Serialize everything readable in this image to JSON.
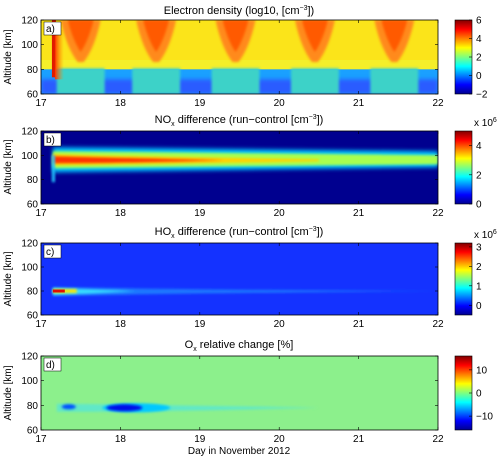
{
  "chart_data": [
    {
      "type": "heatmap",
      "panel_label": "a)",
      "title_main": "Electron density (log10, [cm",
      "title_sup": "−3",
      "title_end": "])",
      "ylabel": "Altitude [km]",
      "xlim": [
        17,
        22
      ],
      "ylim": [
        60,
        120
      ],
      "xticks": [
        "17",
        "18",
        "19",
        "20",
        "21",
        "22"
      ],
      "yticks": [
        "60",
        "80",
        "100",
        "120"
      ],
      "colorbar": {
        "range": [
          -2,
          6
        ],
        "ticks": [
          "−2",
          "0",
          "2",
          "4",
          "6"
        ],
        "exponent": ""
      },
      "features": {
        "day_peak_days": [
          17.5,
          18.45,
          19.45,
          20.45,
          21.45
        ],
        "night_layer_top_km": 80,
        "upper_background": "yellow",
        "spe_onset_day": 17.15
      }
    },
    {
      "type": "heatmap",
      "panel_label": "b)",
      "title_main": "NO",
      "title_sub": "x",
      "title_end": " difference (run−control [cm",
      "title_sup": "−3",
      "title_end2": "])",
      "ylabel": "Altitude [km]",
      "xlim": [
        17,
        22
      ],
      "ylim": [
        60,
        120
      ],
      "xticks": [
        "17",
        "18",
        "19",
        "20",
        "21",
        "22"
      ],
      "yticks": [
        "60",
        "80",
        "100",
        "120"
      ],
      "colorbar": {
        "range": [
          0,
          5
        ],
        "ticks": [
          "0",
          "2",
          "4"
        ],
        "exponent_base": "x 10",
        "exponent_power": "6"
      },
      "features": {
        "band_center_km": 96,
        "band_start_day": 17.15,
        "peak_value": 4500000.0
      }
    },
    {
      "type": "heatmap",
      "panel_label": "c)",
      "title_main": "HO",
      "title_sub": "x",
      "title_end": " difference (run−control [cm",
      "title_sup": "−3",
      "title_end2": "])",
      "ylabel": "Altitude [km]",
      "xlim": [
        17,
        22
      ],
      "ylim": [
        60,
        120
      ],
      "xticks": [
        "17",
        "18",
        "19",
        "20",
        "21",
        "22"
      ],
      "yticks": [
        "60",
        "80",
        "100",
        "120"
      ],
      "colorbar": {
        "range": [
          -0.5,
          3.2
        ],
        "ticks": [
          "0",
          "1",
          "2",
          "3"
        ],
        "exponent_base": "x 10",
        "exponent_power": "6"
      },
      "features": {
        "band_center_km": 80,
        "band_start_day": 17.15,
        "peak_value": 3000000.0
      }
    },
    {
      "type": "heatmap",
      "panel_label": "d)",
      "title_main": "O",
      "title_sub": "x",
      "title_end": " relative change [%]",
      "ylabel": "Altitude [km]",
      "xlabel": "Day in November 2012",
      "xlim": [
        17,
        22
      ],
      "ylim": [
        60,
        120
      ],
      "xticks": [
        "17",
        "18",
        "19",
        "20",
        "21",
        "22"
      ],
      "yticks": [
        "60",
        "80",
        "100",
        "120"
      ],
      "colorbar": {
        "range": [
          -16,
          16
        ],
        "ticks": [
          "−10",
          "0",
          "10"
        ],
        "exponent": ""
      },
      "features": {
        "depletion_center_km": 78,
        "depletion_peak_day": 18.05,
        "min_value": -15
      }
    }
  ]
}
